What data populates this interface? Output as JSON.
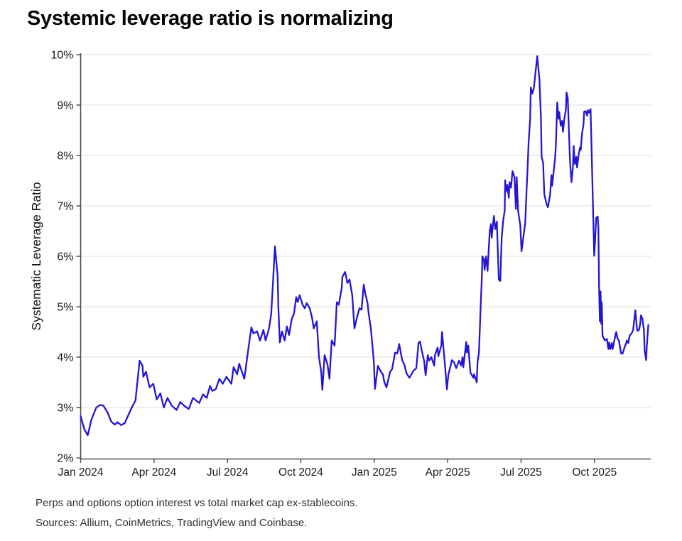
{
  "title": "Systemic leverage ratio is normalizing",
  "footnotes": {
    "note": "Perps and options option interest vs total market cap ex-stablecoins.",
    "sources": "Sources: Allium, CoinMetrics, TradingView and Coinbase."
  },
  "chart_data": {
    "type": "line",
    "title": "Systemic leverage ratio is normalizing",
    "xlabel": "",
    "ylabel": "Systematic Leverage Ratio",
    "ylim": [
      2,
      10
    ],
    "xlim": [
      0,
      23.3
    ],
    "x_unit": "months_since_jan_2024",
    "grid": "horizontal",
    "legend": "none",
    "colors": {
      "line": "#2415d2",
      "grid": "#dcdcdc",
      "spine": "#4b4b4b",
      "tick_text": "#1a1a1a"
    },
    "y_ticks": [
      {
        "value": 2,
        "label": "2%"
      },
      {
        "value": 3,
        "label": "3%"
      },
      {
        "value": 4,
        "label": "4%"
      },
      {
        "value": 5,
        "label": "5%"
      },
      {
        "value": 6,
        "label": "6%"
      },
      {
        "value": 7,
        "label": "7%"
      },
      {
        "value": 8,
        "label": "8%"
      },
      {
        "value": 9,
        "label": "9%"
      },
      {
        "value": 10,
        "label": "10%"
      }
    ],
    "x_ticks": [
      {
        "month": 0,
        "label": "Jan 2024"
      },
      {
        "month": 3,
        "label": "Apr 2024"
      },
      {
        "month": 6,
        "label": "Jul 2024"
      },
      {
        "month": 9,
        "label": "Oct 2024"
      },
      {
        "month": 12,
        "label": "Jan 2025"
      },
      {
        "month": 15,
        "label": "Apr 2025"
      },
      {
        "month": 18,
        "label": "Jul 2025"
      },
      {
        "month": 21,
        "label": "Oct 2025"
      }
    ],
    "series": [
      {
        "name": "Systematic Leverage Ratio",
        "points": [
          [
            0.0,
            2.83
          ],
          [
            0.15,
            2.57
          ],
          [
            0.29,
            2.45
          ],
          [
            0.44,
            2.76
          ],
          [
            0.64,
            3.0
          ],
          [
            0.78,
            3.05
          ],
          [
            0.93,
            3.04
          ],
          [
            1.1,
            2.9
          ],
          [
            1.25,
            2.72
          ],
          [
            1.4,
            2.66
          ],
          [
            1.51,
            2.71
          ],
          [
            1.66,
            2.65
          ],
          [
            1.8,
            2.69
          ],
          [
            1.95,
            2.85
          ],
          [
            2.09,
            3.0
          ],
          [
            2.24,
            3.14
          ],
          [
            2.41,
            3.93
          ],
          [
            2.53,
            3.83
          ],
          [
            2.56,
            3.61
          ],
          [
            2.67,
            3.71
          ],
          [
            2.82,
            3.4
          ],
          [
            2.97,
            3.47
          ],
          [
            3.11,
            3.16
          ],
          [
            3.26,
            3.28
          ],
          [
            3.4,
            3.0
          ],
          [
            3.55,
            3.19
          ],
          [
            3.72,
            3.04
          ],
          [
            3.92,
            2.95
          ],
          [
            4.07,
            3.11
          ],
          [
            4.22,
            3.04
          ],
          [
            4.42,
            2.97
          ],
          [
            4.59,
            3.19
          ],
          [
            4.85,
            3.09
          ],
          [
            5.0,
            3.26
          ],
          [
            5.15,
            3.19
          ],
          [
            5.29,
            3.43
          ],
          [
            5.38,
            3.33
          ],
          [
            5.52,
            3.36
          ],
          [
            5.67,
            3.57
          ],
          [
            5.81,
            3.47
          ],
          [
            5.96,
            3.61
          ],
          [
            6.16,
            3.47
          ],
          [
            6.25,
            3.8
          ],
          [
            6.4,
            3.66
          ],
          [
            6.48,
            3.87
          ],
          [
            6.69,
            3.57
          ],
          [
            6.89,
            4.29
          ],
          [
            6.98,
            4.59
          ],
          [
            7.06,
            4.47
          ],
          [
            7.21,
            4.51
          ],
          [
            7.33,
            4.33
          ],
          [
            7.47,
            4.54
          ],
          [
            7.56,
            4.33
          ],
          [
            7.7,
            4.57
          ],
          [
            7.79,
            4.86
          ],
          [
            7.91,
            5.9
          ],
          [
            7.94,
            6.2
          ],
          [
            8.05,
            5.61
          ],
          [
            8.08,
            5.0
          ],
          [
            8.14,
            4.29
          ],
          [
            8.23,
            4.51
          ],
          [
            8.34,
            4.33
          ],
          [
            8.43,
            4.61
          ],
          [
            8.52,
            4.44
          ],
          [
            8.63,
            4.76
          ],
          [
            8.72,
            4.86
          ],
          [
            8.81,
            5.19
          ],
          [
            8.87,
            5.09
          ],
          [
            8.95,
            5.23
          ],
          [
            9.07,
            5.04
          ],
          [
            9.16,
            4.97
          ],
          [
            9.24,
            5.07
          ],
          [
            9.36,
            4.97
          ],
          [
            9.45,
            4.8
          ],
          [
            9.53,
            4.57
          ],
          [
            9.65,
            4.71
          ],
          [
            9.74,
            4.0
          ],
          [
            9.83,
            3.71
          ],
          [
            9.88,
            3.35
          ],
          [
            9.97,
            4.04
          ],
          [
            10.09,
            3.85
          ],
          [
            10.17,
            3.57
          ],
          [
            10.26,
            4.33
          ],
          [
            10.38,
            4.23
          ],
          [
            10.47,
            5.09
          ],
          [
            10.55,
            5.04
          ],
          [
            10.67,
            5.37
          ],
          [
            10.7,
            5.59
          ],
          [
            10.81,
            5.69
          ],
          [
            10.9,
            5.47
          ],
          [
            10.99,
            5.54
          ],
          [
            11.1,
            5.23
          ],
          [
            11.19,
            4.57
          ],
          [
            11.28,
            4.76
          ],
          [
            11.4,
            4.97
          ],
          [
            11.48,
            4.94
          ],
          [
            11.57,
            5.44
          ],
          [
            11.63,
            5.26
          ],
          [
            11.72,
            5.09
          ],
          [
            11.77,
            4.87
          ],
          [
            11.86,
            4.57
          ],
          [
            11.98,
            3.93
          ],
          [
            12.03,
            3.37
          ],
          [
            12.15,
            3.83
          ],
          [
            12.27,
            3.71
          ],
          [
            12.35,
            3.66
          ],
          [
            12.41,
            3.51
          ],
          [
            12.5,
            3.4
          ],
          [
            12.65,
            3.71
          ],
          [
            12.73,
            3.76
          ],
          [
            12.85,
            4.09
          ],
          [
            12.94,
            4.07
          ],
          [
            13.02,
            4.26
          ],
          [
            13.14,
            3.94
          ],
          [
            13.23,
            3.85
          ],
          [
            13.31,
            3.69
          ],
          [
            13.43,
            3.59
          ],
          [
            13.52,
            3.66
          ],
          [
            13.6,
            3.73
          ],
          [
            13.72,
            3.78
          ],
          [
            13.81,
            4.28
          ],
          [
            13.87,
            4.31
          ],
          [
            13.95,
            4.11
          ],
          [
            14.04,
            3.92
          ],
          [
            14.1,
            3.64
          ],
          [
            14.19,
            4.04
          ],
          [
            14.24,
            3.93
          ],
          [
            14.33,
            4.0
          ],
          [
            14.45,
            3.83
          ],
          [
            14.48,
            4.04
          ],
          [
            14.59,
            4.19
          ],
          [
            14.62,
            4.02
          ],
          [
            14.74,
            4.23
          ],
          [
            14.77,
            4.5
          ],
          [
            14.88,
            3.9
          ],
          [
            14.97,
            3.36
          ],
          [
            15.03,
            3.66
          ],
          [
            15.12,
            3.83
          ],
          [
            15.17,
            3.94
          ],
          [
            15.26,
            3.9
          ],
          [
            15.35,
            3.78
          ],
          [
            15.47,
            3.93
          ],
          [
            15.55,
            3.83
          ],
          [
            15.61,
            4.0
          ],
          [
            15.64,
            3.8
          ],
          [
            15.76,
            4.3
          ],
          [
            15.79,
            4.09
          ],
          [
            15.84,
            4.23
          ],
          [
            15.93,
            3.69
          ],
          [
            16.05,
            3.59
          ],
          [
            16.08,
            3.66
          ],
          [
            16.19,
            3.5
          ],
          [
            16.22,
            3.9
          ],
          [
            16.28,
            4.09
          ],
          [
            16.34,
            4.9
          ],
          [
            16.4,
            5.6
          ],
          [
            16.42,
            6.0
          ],
          [
            16.48,
            5.94
          ],
          [
            16.51,
            5.73
          ],
          [
            16.57,
            6.0
          ],
          [
            16.63,
            5.71
          ],
          [
            16.72,
            6.51
          ],
          [
            16.77,
            6.64
          ],
          [
            16.8,
            6.37
          ],
          [
            16.89,
            6.8
          ],
          [
            16.95,
            6.54
          ],
          [
            17.01,
            6.69
          ],
          [
            17.09,
            5.54
          ],
          [
            17.15,
            5.51
          ],
          [
            17.21,
            6.37
          ],
          [
            17.27,
            6.71
          ],
          [
            17.33,
            6.9
          ],
          [
            17.35,
            7.51
          ],
          [
            17.38,
            7.28
          ],
          [
            17.44,
            7.42
          ],
          [
            17.5,
            7.16
          ],
          [
            17.53,
            7.47
          ],
          [
            17.59,
            7.36
          ],
          [
            17.65,
            7.69
          ],
          [
            17.73,
            7.57
          ],
          [
            17.79,
            6.94
          ],
          [
            17.82,
            7.57
          ],
          [
            17.88,
            6.9
          ],
          [
            17.97,
            6.61
          ],
          [
            18.02,
            6.1
          ],
          [
            18.17,
            6.66
          ],
          [
            18.23,
            7.37
          ],
          [
            18.26,
            7.66
          ],
          [
            18.31,
            8.26
          ],
          [
            18.37,
            8.71
          ],
          [
            18.4,
            9.35
          ],
          [
            18.46,
            9.23
          ],
          [
            18.52,
            9.33
          ],
          [
            18.66,
            9.97
          ],
          [
            18.75,
            9.51
          ],
          [
            18.81,
            8.76
          ],
          [
            18.84,
            7.97
          ],
          [
            18.9,
            7.86
          ],
          [
            18.95,
            7.23
          ],
          [
            19.04,
            7.04
          ],
          [
            19.1,
            6.97
          ],
          [
            19.19,
            7.23
          ],
          [
            19.24,
            7.61
          ],
          [
            19.27,
            7.4
          ],
          [
            19.39,
            7.94
          ],
          [
            19.42,
            8.19
          ],
          [
            19.48,
            9.05
          ],
          [
            19.53,
            8.73
          ],
          [
            19.56,
            8.86
          ],
          [
            19.62,
            8.59
          ],
          [
            19.68,
            8.69
          ],
          [
            19.71,
            8.47
          ],
          [
            19.77,
            8.73
          ],
          [
            19.83,
            8.9
          ],
          [
            19.86,
            9.25
          ],
          [
            19.91,
            9.14
          ],
          [
            19.97,
            8.3
          ],
          [
            20.0,
            7.9
          ],
          [
            20.06,
            7.47
          ],
          [
            20.12,
            7.78
          ],
          [
            20.15,
            8.19
          ],
          [
            20.2,
            7.83
          ],
          [
            20.26,
            7.97
          ],
          [
            20.29,
            7.76
          ],
          [
            20.35,
            8.01
          ],
          [
            20.41,
            8.16
          ],
          [
            20.44,
            8.11
          ],
          [
            20.49,
            8.43
          ],
          [
            20.55,
            8.61
          ],
          [
            20.58,
            8.87
          ],
          [
            20.64,
            8.88
          ],
          [
            20.7,
            8.79
          ],
          [
            20.73,
            8.9
          ],
          [
            20.78,
            8.85
          ],
          [
            20.84,
            8.92
          ],
          [
            20.87,
            8.37
          ],
          [
            20.93,
            7.16
          ],
          [
            20.99,
            6.01
          ],
          [
            21.01,
            6.16
          ],
          [
            21.07,
            6.76
          ],
          [
            21.13,
            6.79
          ],
          [
            21.16,
            6.57
          ],
          [
            21.19,
            5.36
          ],
          [
            21.22,
            4.71
          ],
          [
            21.25,
            5.3
          ],
          [
            21.28,
            4.66
          ],
          [
            21.3,
            5.09
          ],
          [
            21.33,
            4.43
          ],
          [
            21.42,
            4.33
          ],
          [
            21.51,
            4.36
          ],
          [
            21.57,
            4.16
          ],
          [
            21.6,
            4.29
          ],
          [
            21.65,
            4.16
          ],
          [
            21.71,
            4.28
          ],
          [
            21.74,
            4.16
          ],
          [
            21.86,
            4.44
          ],
          [
            21.89,
            4.5
          ],
          [
            21.94,
            4.37
          ],
          [
            22.0,
            4.33
          ],
          [
            22.09,
            4.07
          ],
          [
            22.15,
            4.07
          ],
          [
            22.24,
            4.21
          ],
          [
            22.3,
            4.28
          ],
          [
            22.32,
            4.33
          ],
          [
            22.38,
            4.28
          ],
          [
            22.44,
            4.43
          ],
          [
            22.52,
            4.47
          ],
          [
            22.58,
            4.54
          ],
          [
            22.61,
            4.66
          ],
          [
            22.67,
            4.93
          ],
          [
            22.73,
            4.59
          ],
          [
            22.76,
            4.52
          ],
          [
            22.82,
            4.54
          ],
          [
            22.87,
            4.66
          ],
          [
            22.9,
            4.83
          ],
          [
            22.96,
            4.76
          ],
          [
            23.02,
            4.54
          ],
          [
            23.05,
            4.14
          ],
          [
            23.11,
            3.94
          ],
          [
            23.14,
            4.23
          ],
          [
            23.2,
            4.64
          ]
        ]
      }
    ]
  }
}
